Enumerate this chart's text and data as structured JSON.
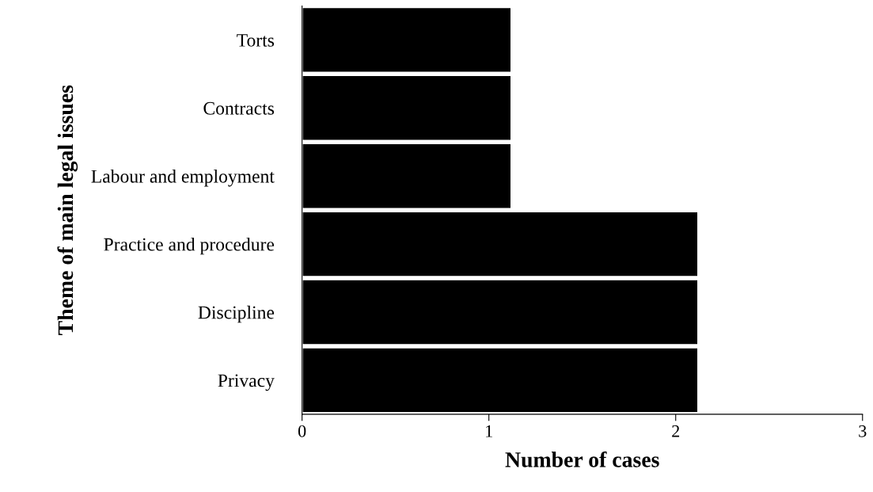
{
  "chart_data": {
    "type": "bar",
    "orientation": "horizontal",
    "xlabel": "Number of cases",
    "ylabel": "Theme of main legal issues",
    "categories": [
      "Torts",
      "Contracts",
      "Labour and employment",
      "Practice and procedure",
      "Discipline",
      "Privacy"
    ],
    "values": [
      1.12,
      1.12,
      1.12,
      2.12,
      2.12,
      2.12
    ],
    "color": "#000000",
    "xlim": [
      0,
      3
    ],
    "xticks": [
      0,
      1,
      2,
      3
    ],
    "grid": false,
    "legend": false
  }
}
